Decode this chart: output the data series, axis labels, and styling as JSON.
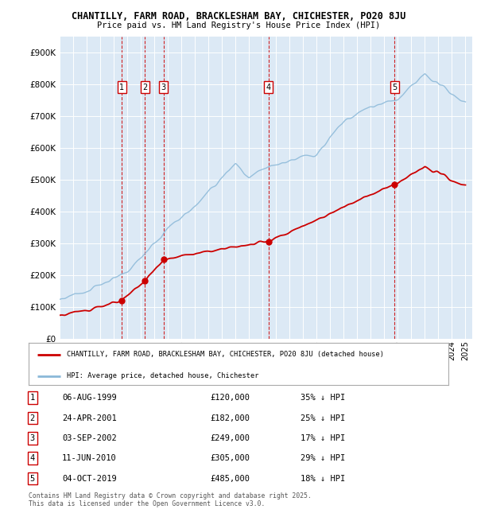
{
  "title": "CHANTILLY, FARM ROAD, BRACKLESHAM BAY, CHICHESTER, PO20 8JU",
  "subtitle": "Price paid vs. HM Land Registry's House Price Index (HPI)",
  "bg_color": "#dce9f5",
  "red_color": "#cc0000",
  "blue_color": "#8ab8d8",
  "ylim": [
    0,
    950000
  ],
  "yticks": [
    0,
    100000,
    200000,
    300000,
    400000,
    500000,
    600000,
    700000,
    800000,
    900000
  ],
  "ytick_labels": [
    "£0",
    "£100K",
    "£200K",
    "£300K",
    "£400K",
    "£500K",
    "£600K",
    "£700K",
    "£800K",
    "£900K"
  ],
  "sale_years": [
    1999.59,
    2001.31,
    2002.67,
    2010.44,
    2019.75
  ],
  "sale_prices": [
    120000,
    182000,
    249000,
    305000,
    485000
  ],
  "sale_labels": [
    "1",
    "2",
    "3",
    "4",
    "5"
  ],
  "legend_label_red": "CHANTILLY, FARM ROAD, BRACKLESHAM BAY, CHICHESTER, PO20 8JU (detached house)",
  "legend_label_blue": "HPI: Average price, detached house, Chichester",
  "footer": "Contains HM Land Registry data © Crown copyright and database right 2025.\nThis data is licensed under the Open Government Licence v3.0.",
  "table_rows": [
    [
      "1",
      "06-AUG-1999",
      "£120,000",
      "35% ↓ HPI"
    ],
    [
      "2",
      "24-APR-2001",
      "£182,000",
      "25% ↓ HPI"
    ],
    [
      "3",
      "03-SEP-2002",
      "£249,000",
      "17% ↓ HPI"
    ],
    [
      "4",
      "11-JUN-2010",
      "£305,000",
      "29% ↓ HPI"
    ],
    [
      "5",
      "04-OCT-2019",
      "£485,000",
      "18% ↓ HPI"
    ]
  ]
}
